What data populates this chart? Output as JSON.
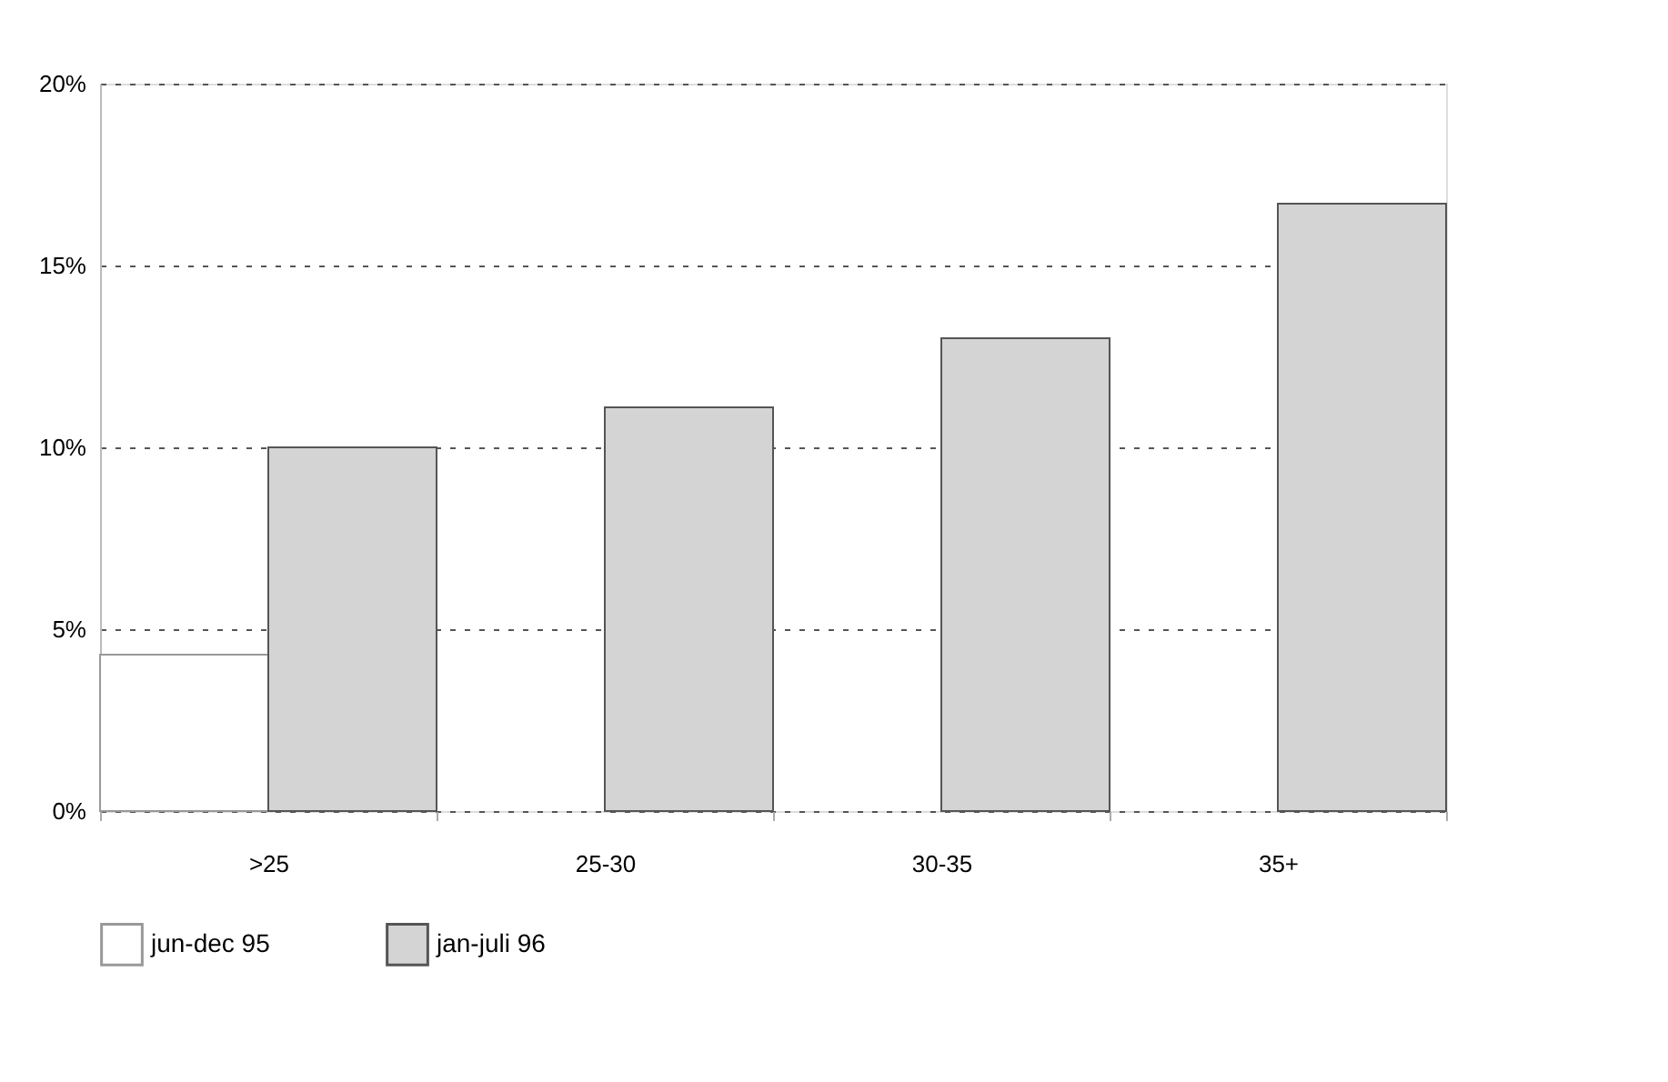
{
  "chart_data": {
    "type": "bar",
    "categories": [
      ">25",
      "25-30",
      "30-35",
      "35+"
    ],
    "series": [
      {
        "name": "jun-dec 95",
        "color": "#ffffff",
        "values": [
          4.3,
          null,
          null,
          null
        ]
      },
      {
        "name": "jan-juli 96",
        "color": "#d4d4d4",
        "values": [
          10.0,
          11.1,
          13.0,
          16.7
        ]
      }
    ],
    "ylim": [
      0,
      20
    ],
    "yticks": [
      {
        "value": 0,
        "label": "0%"
      },
      {
        "value": 5,
        "label": "5%"
      },
      {
        "value": 10,
        "label": "10%"
      },
      {
        "value": 15,
        "label": "15%"
      },
      {
        "value": 20,
        "label": "20%"
      }
    ],
    "grid": "y",
    "legend": "bottom"
  }
}
